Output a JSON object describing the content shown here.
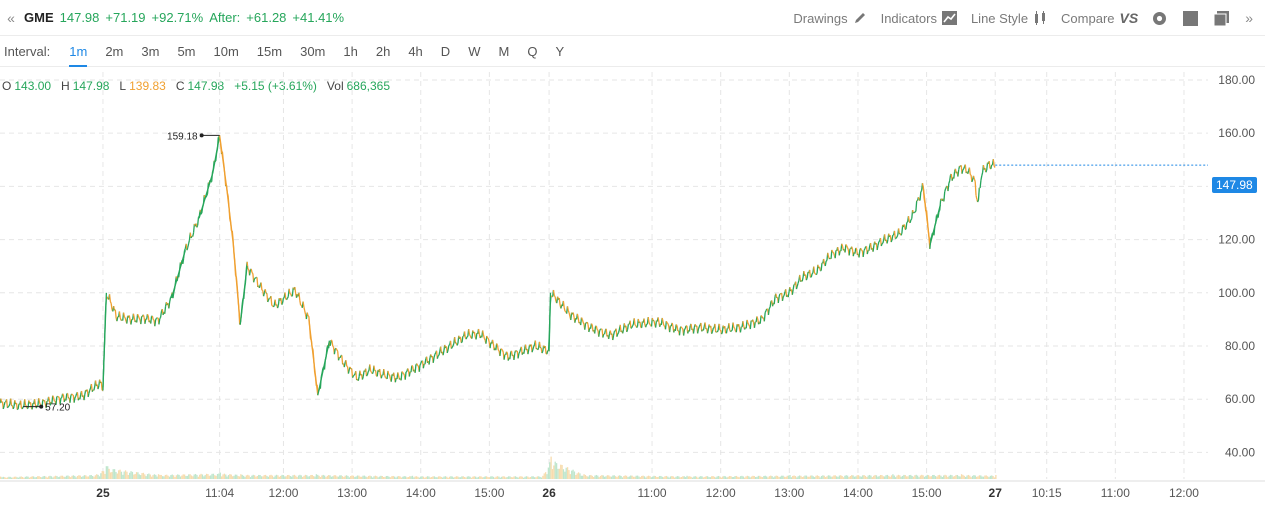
{
  "header": {
    "collapse_icon": "double-chevron-left-icon",
    "symbol": "GME",
    "last": "147.98",
    "change": "+71.19",
    "change_pct": "+92.71%",
    "after_label": "After:",
    "after_change": "+61.28",
    "after_pct": "+41.41%",
    "tools": {
      "drawings": "Drawings",
      "indicators": "Indicators",
      "line_style": "Line Style",
      "compare": "Compare",
      "compare_vs": "VS"
    }
  },
  "intervals": {
    "label": "Interval:",
    "items": [
      "1m",
      "2m",
      "3m",
      "5m",
      "10m",
      "15m",
      "30m",
      "1h",
      "2h",
      "4h",
      "D",
      "W",
      "M",
      "Q",
      "Y"
    ],
    "active": "1m"
  },
  "ohlc": {
    "o_label": "O",
    "o": "143.00",
    "h_label": "H",
    "h": "147.98",
    "l_label": "L",
    "l": "139.83",
    "c_label": "C",
    "c": "147.98",
    "change": "+5.15 (+3.61%)",
    "vol_label": "Vol",
    "vol": "686,365"
  },
  "colors": {
    "up": "#26a65b",
    "down": "#f0a030",
    "accent": "#1e88e5",
    "grid": "#e6e6e6"
  },
  "chart_data": {
    "type": "line",
    "symbol": "GME",
    "ylim": [
      30,
      183
    ],
    "y_ticks": [
      40,
      60,
      80,
      100,
      120,
      140,
      160,
      180
    ],
    "y_tick_labels": [
      "40.00",
      "60.00",
      "80.00",
      "100.00",
      "120.00",
      "140.00",
      "160.00",
      "180.00"
    ],
    "x_tick_labels": [
      {
        "t": 1.5,
        "label": "25",
        "bold": true
      },
      {
        "t": 3.2,
        "label": "11:04",
        "bold": false
      },
      {
        "t": 4.13,
        "label": "12:00",
        "bold": false
      },
      {
        "t": 5.13,
        "label": "13:00",
        "bold": false
      },
      {
        "t": 6.13,
        "label": "14:00",
        "bold": false
      },
      {
        "t": 7.13,
        "label": "15:00",
        "bold": false
      },
      {
        "t": 8.0,
        "label": "26",
        "bold": true
      },
      {
        "t": 9.5,
        "label": "11:00",
        "bold": false
      },
      {
        "t": 10.5,
        "label": "12:00",
        "bold": false
      },
      {
        "t": 11.5,
        "label": "13:00",
        "bold": false
      },
      {
        "t": 12.5,
        "label": "14:00",
        "bold": false
      },
      {
        "t": 13.5,
        "label": "15:00",
        "bold": false
      },
      {
        "t": 14.5,
        "label": "27",
        "bold": true
      },
      {
        "t": 15.25,
        "label": "10:15",
        "bold": false
      },
      {
        "t": 16.25,
        "label": "11:00",
        "bold": false
      },
      {
        "t": 17.25,
        "label": "12:00",
        "bold": false
      }
    ],
    "price": [
      [
        0,
        58.5
      ],
      [
        0.3,
        57.5
      ],
      [
        0.6,
        58.3
      ],
      [
        0.9,
        60.5
      ],
      [
        1.2,
        61.2
      ],
      [
        1.45,
        66.0
      ],
      [
        1.5,
        64.5
      ],
      [
        1.55,
        100.0
      ],
      [
        1.7,
        91.0
      ],
      [
        1.9,
        90.0
      ],
      [
        2.1,
        90.5
      ],
      [
        2.3,
        89.5
      ],
      [
        2.5,
        98.0
      ],
      [
        2.7,
        116.0
      ],
      [
        2.9,
        128.0
      ],
      [
        3.1,
        145.0
      ],
      [
        3.2,
        159.18
      ],
      [
        3.3,
        140.0
      ],
      [
        3.4,
        118.0
      ],
      [
        3.5,
        88.0
      ],
      [
        3.6,
        110.0
      ],
      [
        3.8,
        102.0
      ],
      [
        4.0,
        95.0
      ],
      [
        4.3,
        101.0
      ],
      [
        4.5,
        90.0
      ],
      [
        4.63,
        61.5
      ],
      [
        4.8,
        82.0
      ],
      [
        5.0,
        74.0
      ],
      [
        5.2,
        68.0
      ],
      [
        5.4,
        71.0
      ],
      [
        5.6,
        69.0
      ],
      [
        5.8,
        68.0
      ],
      [
        6.0,
        71.0
      ],
      [
        6.2,
        74.0
      ],
      [
        6.5,
        79.0
      ],
      [
        6.8,
        84.0
      ],
      [
        7.0,
        84.5
      ],
      [
        7.2,
        80.0
      ],
      [
        7.4,
        76.0
      ],
      [
        7.6,
        78.0
      ],
      [
        7.8,
        80.0
      ],
      [
        8.0,
        78.0
      ],
      [
        8.02,
        100.0
      ],
      [
        8.1,
        98.0
      ],
      [
        8.3,
        92.0
      ],
      [
        8.6,
        87.0
      ],
      [
        8.9,
        84.0
      ],
      [
        9.2,
        88.0
      ],
      [
        9.6,
        89.0
      ],
      [
        9.9,
        86.0
      ],
      [
        10.2,
        87.0
      ],
      [
        10.5,
        86.0
      ],
      [
        10.8,
        87.0
      ],
      [
        11.1,
        90.0
      ],
      [
        11.3,
        98.0
      ],
      [
        11.5,
        100.0
      ],
      [
        11.7,
        106.0
      ],
      [
        11.9,
        108.0
      ],
      [
        12.1,
        114.0
      ],
      [
        12.3,
        117.0
      ],
      [
        12.5,
        115.0
      ],
      [
        12.7,
        117.0
      ],
      [
        12.9,
        120.0
      ],
      [
        13.1,
        122.0
      ],
      [
        13.3,
        129.0
      ],
      [
        13.45,
        140.0
      ],
      [
        13.55,
        118.0
      ],
      [
        13.7,
        133.0
      ],
      [
        13.85,
        143.0
      ],
      [
        14.0,
        147.0
      ],
      [
        14.1,
        146.0
      ],
      [
        14.2,
        142.0
      ],
      [
        14.25,
        133.0
      ],
      [
        14.3,
        145.0
      ],
      [
        14.4,
        148.0
      ],
      [
        14.5,
        147.98
      ]
    ],
    "volume": [
      [
        0,
        1.5
      ],
      [
        1.4,
        3
      ],
      [
        1.55,
        8
      ],
      [
        2.3,
        3
      ],
      [
        3.2,
        4
      ],
      [
        3.5,
        3
      ],
      [
        4.6,
        3
      ],
      [
        6.0,
        2
      ],
      [
        7.9,
        2
      ],
      [
        8.02,
        14
      ],
      [
        8.5,
        3
      ],
      [
        10.0,
        2
      ],
      [
        11.5,
        2.5
      ],
      [
        13.0,
        3
      ],
      [
        14.0,
        3
      ],
      [
        14.5,
        2.5
      ]
    ],
    "annotations": [
      {
        "t": 3.2,
        "value": 159.18,
        "label": "159.18"
      },
      {
        "t": 0.6,
        "value": 57.2,
        "label": "57.20"
      }
    ],
    "last_price_label": "147.98",
    "grid": true
  }
}
